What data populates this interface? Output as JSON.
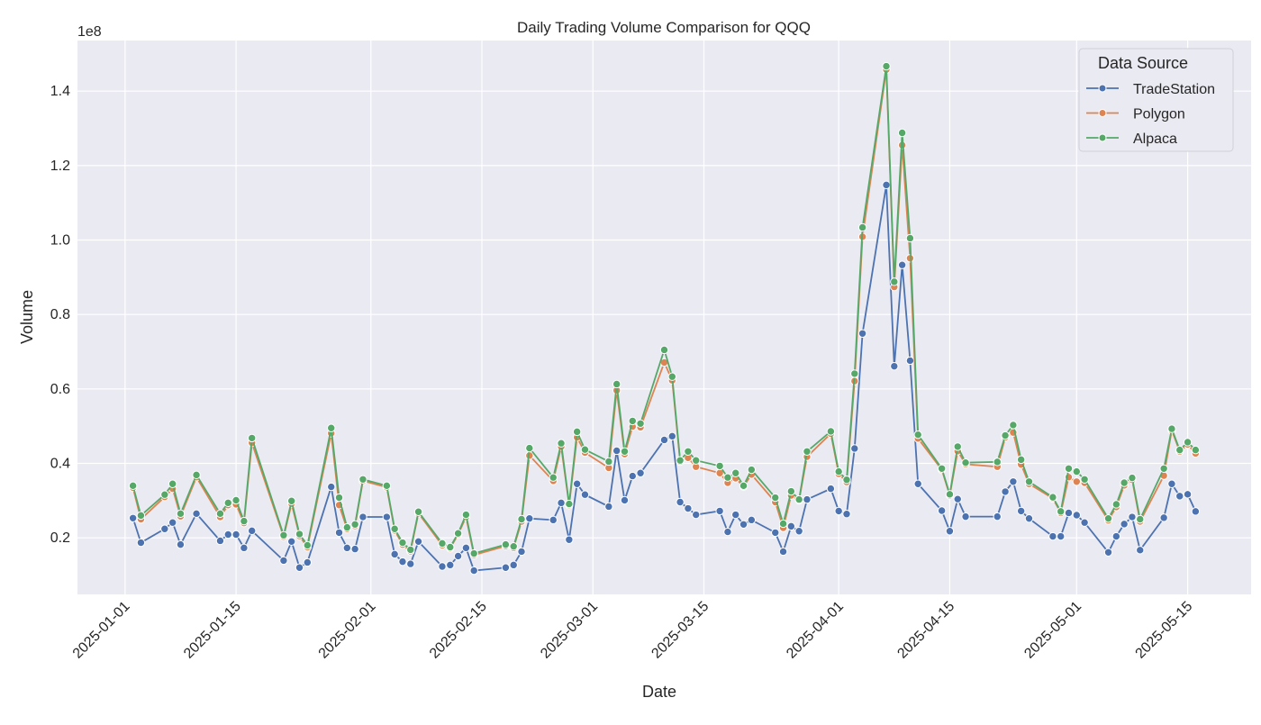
{
  "chart_data": {
    "type": "line",
    "title": "Daily Trading Volume Comparison for QQQ",
    "xlabel": "Date",
    "ylabel": "Volume",
    "y_offset_label": "1e8",
    "ylim": [
      0.048,
      1.536
    ],
    "xlim": [
      "2024-12-26",
      "2025-05-23"
    ],
    "grid": true,
    "background": "#eaeaf2",
    "legend": {
      "title": "Data Source",
      "placement": "top-right"
    },
    "x_ticks": [
      "2025-01-01",
      "2025-01-15",
      "2025-02-01",
      "2025-02-15",
      "2025-03-01",
      "2025-03-15",
      "2025-04-01",
      "2025-04-15",
      "2025-05-01",
      "2025-05-15"
    ],
    "y_ticks": [
      0.2,
      0.4,
      0.6,
      0.8,
      1.0,
      1.2,
      1.4
    ],
    "y_tick_labels": [
      "0.2",
      "0.4",
      "0.6",
      "0.8",
      "1.0",
      "1.2",
      "1.4"
    ],
    "x": [
      "2025-01-02",
      "2025-01-03",
      "2025-01-06",
      "2025-01-07",
      "2025-01-08",
      "2025-01-10",
      "2025-01-13",
      "2025-01-14",
      "2025-01-15",
      "2025-01-16",
      "2025-01-17",
      "2025-01-21",
      "2025-01-22",
      "2025-01-23",
      "2025-01-24",
      "2025-01-27",
      "2025-01-28",
      "2025-01-29",
      "2025-01-30",
      "2025-01-31",
      "2025-02-03",
      "2025-02-04",
      "2025-02-05",
      "2025-02-06",
      "2025-02-07",
      "2025-02-10",
      "2025-02-11",
      "2025-02-12",
      "2025-02-13",
      "2025-02-14",
      "2025-02-18",
      "2025-02-19",
      "2025-02-20",
      "2025-02-21",
      "2025-02-24",
      "2025-02-25",
      "2025-02-26",
      "2025-02-27",
      "2025-02-28",
      "2025-03-03",
      "2025-03-04",
      "2025-03-05",
      "2025-03-06",
      "2025-03-07",
      "2025-03-10",
      "2025-03-11",
      "2025-03-12",
      "2025-03-13",
      "2025-03-14",
      "2025-03-17",
      "2025-03-18",
      "2025-03-19",
      "2025-03-20",
      "2025-03-21",
      "2025-03-24",
      "2025-03-25",
      "2025-03-26",
      "2025-03-27",
      "2025-03-28",
      "2025-03-31",
      "2025-04-01",
      "2025-04-02",
      "2025-04-03",
      "2025-04-04",
      "2025-04-07",
      "2025-04-08",
      "2025-04-09",
      "2025-04-10",
      "2025-04-11",
      "2025-04-14",
      "2025-04-15",
      "2025-04-16",
      "2025-04-17",
      "2025-04-21",
      "2025-04-22",
      "2025-04-23",
      "2025-04-24",
      "2025-04-25",
      "2025-04-28",
      "2025-04-29",
      "2025-04-30",
      "2025-05-01",
      "2025-05-02",
      "2025-05-05",
      "2025-05-06",
      "2025-05-07",
      "2025-05-08",
      "2025-05-09",
      "2025-05-12",
      "2025-05-13",
      "2025-05-14",
      "2025-05-15",
      "2025-05-16"
    ],
    "series": [
      {
        "name": "TradeStation",
        "color": "#4c72b0",
        "values": [
          0.253,
          0.187,
          0.224,
          0.241,
          0.182,
          0.265,
          0.192,
          0.209,
          0.209,
          0.173,
          0.219,
          0.139,
          0.19,
          0.12,
          0.134,
          0.337,
          0.214,
          0.173,
          0.17,
          0.256,
          0.256,
          0.156,
          0.136,
          0.13,
          0.19,
          0.123,
          0.127,
          0.151,
          0.173,
          0.112,
          0.12,
          0.127,
          0.163,
          0.252,
          0.248,
          0.294,
          0.195,
          0.345,
          0.316,
          0.284,
          0.434,
          0.301,
          0.366,
          0.374,
          0.463,
          0.473,
          0.296,
          0.279,
          0.262,
          0.272,
          0.216,
          0.262,
          0.236,
          0.248,
          0.214,
          0.163,
          0.231,
          0.218,
          0.303,
          0.332,
          0.272,
          0.264,
          0.44,
          0.749,
          1.148,
          0.661,
          0.933,
          0.676,
          0.345,
          0.273,
          0.218,
          0.304,
          0.257,
          0.257,
          0.324,
          0.351,
          0.272,
          0.252,
          0.204,
          0.204,
          0.267,
          0.261,
          0.241,
          0.161,
          0.204,
          0.237,
          0.256,
          0.167,
          0.254,
          0.345,
          0.312,
          0.317,
          0.271
        ]
      },
      {
        "name": "Polygon",
        "color": "#dd8452",
        "values": [
          0.335,
          0.25,
          0.31,
          0.332,
          0.258,
          0.363,
          0.256,
          0.288,
          0.29,
          0.24,
          0.455,
          0.203,
          0.292,
          0.205,
          0.175,
          0.481,
          0.288,
          0.224,
          0.232,
          0.353,
          0.336,
          0.22,
          0.182,
          0.164,
          0.266,
          0.18,
          0.172,
          0.209,
          0.256,
          0.154,
          0.178,
          0.173,
          0.244,
          0.421,
          0.353,
          0.445,
          0.288,
          0.47,
          0.429,
          0.388,
          0.596,
          0.425,
          0.499,
          0.497,
          0.671,
          0.623,
          0.405,
          0.415,
          0.391,
          0.374,
          0.348,
          0.36,
          0.338,
          0.37,
          0.296,
          0.227,
          0.314,
          0.301,
          0.418,
          0.48,
          0.372,
          0.35,
          0.621,
          1.009,
          1.458,
          0.874,
          1.255,
          0.951,
          0.467,
          0.383,
          0.314,
          0.433,
          0.398,
          0.391,
          0.47,
          0.483,
          0.397,
          0.345,
          0.306,
          0.267,
          0.363,
          0.351,
          0.348,
          0.247,
          0.283,
          0.341,
          0.356,
          0.244,
          0.367,
          0.489,
          0.432,
          0.451,
          0.427
        ]
      },
      {
        "name": "Alpaca",
        "color": "#55a868",
        "values": [
          0.34,
          0.26,
          0.316,
          0.345,
          0.265,
          0.369,
          0.265,
          0.294,
          0.301,
          0.245,
          0.468,
          0.207,
          0.299,
          0.21,
          0.18,
          0.495,
          0.308,
          0.228,
          0.236,
          0.357,
          0.34,
          0.224,
          0.187,
          0.168,
          0.27,
          0.185,
          0.175,
          0.212,
          0.262,
          0.158,
          0.182,
          0.177,
          0.25,
          0.441,
          0.362,
          0.454,
          0.291,
          0.485,
          0.437,
          0.405,
          0.613,
          0.432,
          0.514,
          0.507,
          0.705,
          0.633,
          0.408,
          0.432,
          0.408,
          0.393,
          0.362,
          0.374,
          0.34,
          0.383,
          0.308,
          0.238,
          0.325,
          0.303,
          0.432,
          0.486,
          0.378,
          0.356,
          0.641,
          1.034,
          1.467,
          0.888,
          1.288,
          1.005,
          0.477,
          0.386,
          0.317,
          0.445,
          0.402,
          0.404,
          0.475,
          0.503,
          0.41,
          0.351,
          0.309,
          0.271,
          0.386,
          0.378,
          0.357,
          0.252,
          0.29,
          0.348,
          0.361,
          0.25,
          0.386,
          0.493,
          0.436,
          0.457,
          0.436
        ]
      }
    ]
  }
}
